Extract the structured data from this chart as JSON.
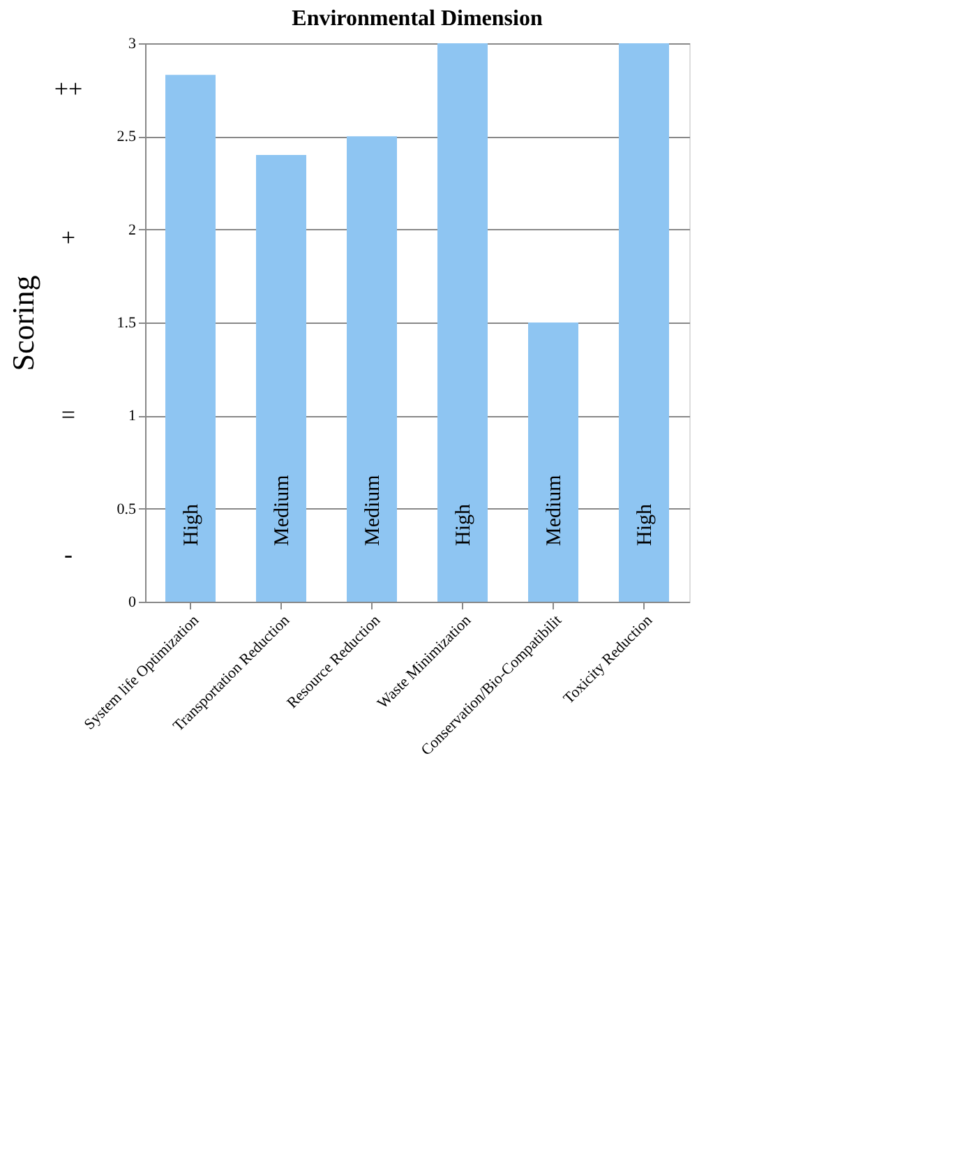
{
  "chart_data": {
    "type": "bar",
    "title": "Environmental Dimension",
    "ylabel": "Scoring",
    "categories": [
      "System life Optimization",
      "Transportation Reduction",
      "Resource Reduction",
      "Waste Minimization",
      "Conservation/Bio-Compatibilit",
      "Toxicity Reduction"
    ],
    "values": [
      2.83,
      2.4,
      2.5,
      3,
      1.5,
      3
    ],
    "color": "#8ec5f2",
    "ylim": [
      0,
      3
    ],
    "yticks": [
      0,
      0.5,
      1,
      1.5,
      2,
      2.5,
      3
    ],
    "grid": "y",
    "annotations": [
      "High",
      "Medium",
      "Medium",
      "High",
      "Medium",
      "High",
      "++",
      "+",
      "=",
      "-"
    ]
  }
}
